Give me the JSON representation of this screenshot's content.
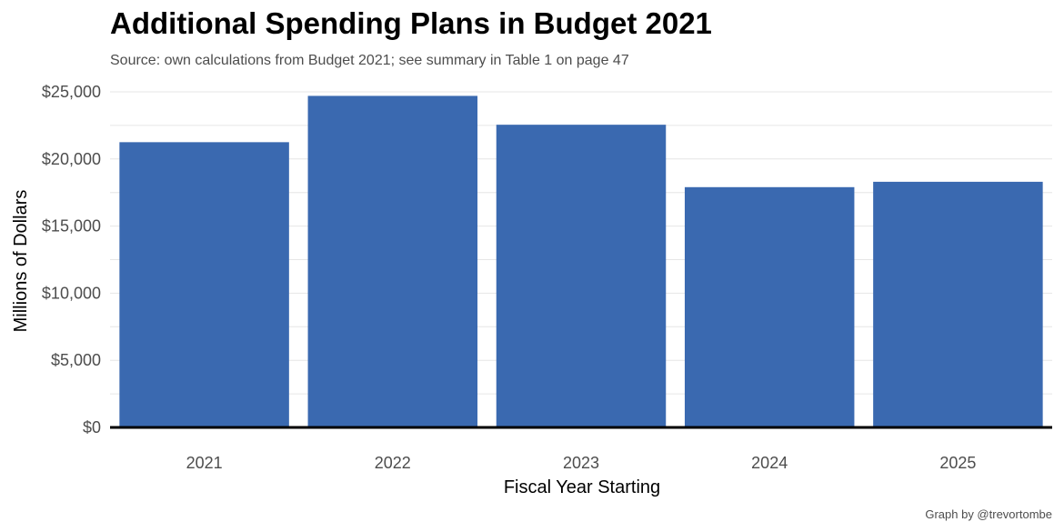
{
  "chart_data": {
    "type": "bar",
    "title": "Additional Spending Plans in Budget 2021",
    "subtitle": "Source: own calculations from Budget 2021; see summary in Table 1 on page 47",
    "caption": "Graph by @trevortombe",
    "xlabel": "Fiscal Year Starting",
    "ylabel": "Millions of Dollars",
    "categories": [
      "2021",
      "2022",
      "2023",
      "2024",
      "2025"
    ],
    "values": [
      21250,
      24700,
      22550,
      17900,
      18300
    ],
    "ylim": [
      0,
      25000
    ],
    "yticks": [
      0,
      5000,
      10000,
      15000,
      20000,
      25000
    ],
    "ytick_labels": [
      "$0",
      "$5,000",
      "$10,000",
      "$15,000",
      "$20,000",
      "$25,000"
    ],
    "grid": true,
    "legend": "none",
    "colors": {
      "bar": "#3a69b0",
      "baseline": "#000000",
      "grid": "#e6e6e6"
    }
  }
}
